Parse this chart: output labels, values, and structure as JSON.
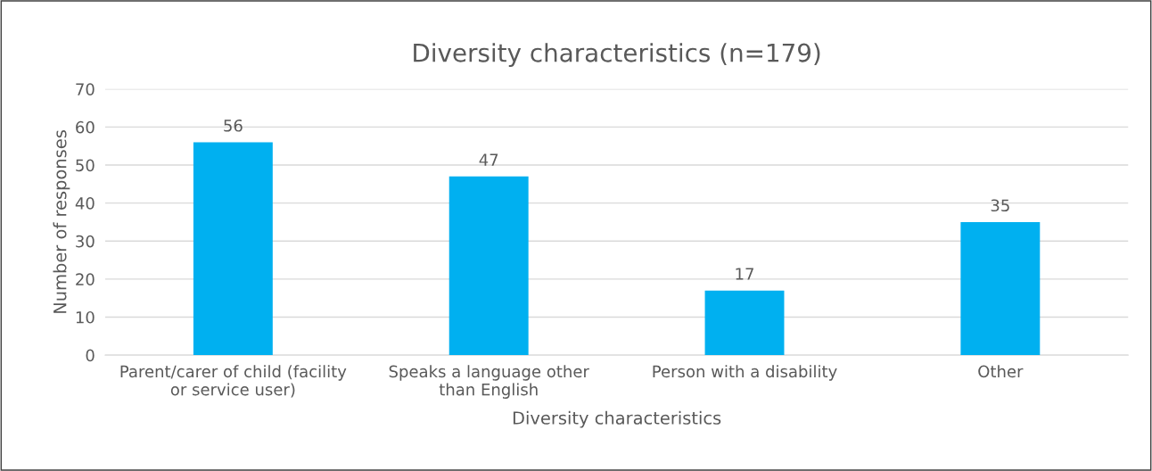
{
  "chart_data": {
    "type": "bar",
    "title": "Diversity characteristics (n=179)",
    "xlabel": "Diversity characteristics",
    "ylabel": "Number of responses",
    "categories": [
      "Parent/carer of child (facility\nor service user)",
      "Speaks a language other\nthan English",
      "Person with a disability",
      "Other"
    ],
    "values": [
      56,
      47,
      17,
      35
    ],
    "color": "#00b0f0",
    "ylim": [
      0,
      70
    ],
    "yticks": [
      0,
      10,
      20,
      30,
      40,
      50,
      60,
      70
    ],
    "grid": "y",
    "data_labels": true
  }
}
